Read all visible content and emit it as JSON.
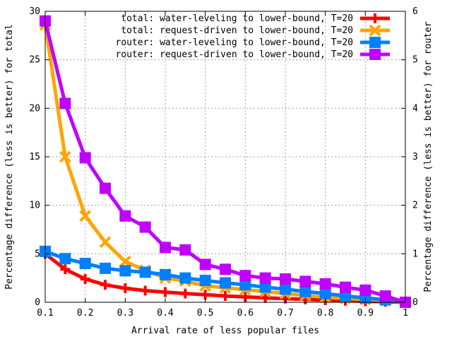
{
  "chart_data": {
    "type": "line",
    "xlabel": "Arrival rate of less popular files",
    "ylabel_left": "Percentage difference (less is better) for total",
    "ylabel_right": "Percentage difference (less is better) for router",
    "xlim": [
      0.1,
      1.0
    ],
    "ylim_left": [
      0,
      30
    ],
    "ylim_right": [
      0,
      6
    ],
    "xticks": [
      "0.1",
      "0.2",
      "0.3",
      "0.4",
      "0.5",
      "0.6",
      "0.7",
      "0.8",
      "0.9",
      "1"
    ],
    "yticks_left": [
      "0",
      "5",
      "10",
      "15",
      "20",
      "25",
      "30"
    ],
    "yticks_right": [
      "0",
      "1",
      "2",
      "3",
      "4",
      "5",
      "6"
    ],
    "grid": true,
    "legend_position": "top-right",
    "x": [
      0.1,
      0.15,
      0.2,
      0.25,
      0.3,
      0.35,
      0.4,
      0.45,
      0.5,
      0.55,
      0.6,
      0.65,
      0.7,
      0.75,
      0.8,
      0.85,
      0.9,
      0.95,
      1.0
    ],
    "series": [
      {
        "name": "total: water-leveling to lower-bound, T=20",
        "axis": "left",
        "color": "#ff0000",
        "marker": "plus",
        "values": [
          5.0,
          3.4,
          2.4,
          1.8,
          1.45,
          1.2,
          1.05,
          0.9,
          0.78,
          0.65,
          0.55,
          0.45,
          0.38,
          0.3,
          0.22,
          0.16,
          0.1,
          0.05,
          0.0
        ]
      },
      {
        "name": "total: request-driven to lower-bound, T=20",
        "axis": "left",
        "color": "#ffa500",
        "marker": "cross",
        "values": [
          28.6,
          15.0,
          8.9,
          6.2,
          4.2,
          3.3,
          2.5,
          2.2,
          1.7,
          1.5,
          1.3,
          1.1,
          0.9,
          0.7,
          0.5,
          0.4,
          0.3,
          0.2,
          0.0
        ]
      },
      {
        "name": "router: water-leveling to lower-bound, T=20",
        "axis": "right",
        "color": "#0080ff",
        "marker": "square",
        "values": [
          1.05,
          0.9,
          0.8,
          0.7,
          0.65,
          0.62,
          0.57,
          0.5,
          0.45,
          0.4,
          0.36,
          0.31,
          0.27,
          0.22,
          0.18,
          0.13,
          0.09,
          0.05,
          0.0
        ]
      },
      {
        "name": "router: request-driven to lower-bound, T=20",
        "axis": "right",
        "color": "#c000ff",
        "marker": "square",
        "values": [
          5.8,
          4.1,
          2.98,
          2.35,
          1.78,
          1.55,
          1.13,
          1.08,
          0.78,
          0.68,
          0.55,
          0.5,
          0.48,
          0.43,
          0.38,
          0.31,
          0.25,
          0.13,
          0.0
        ]
      }
    ]
  }
}
